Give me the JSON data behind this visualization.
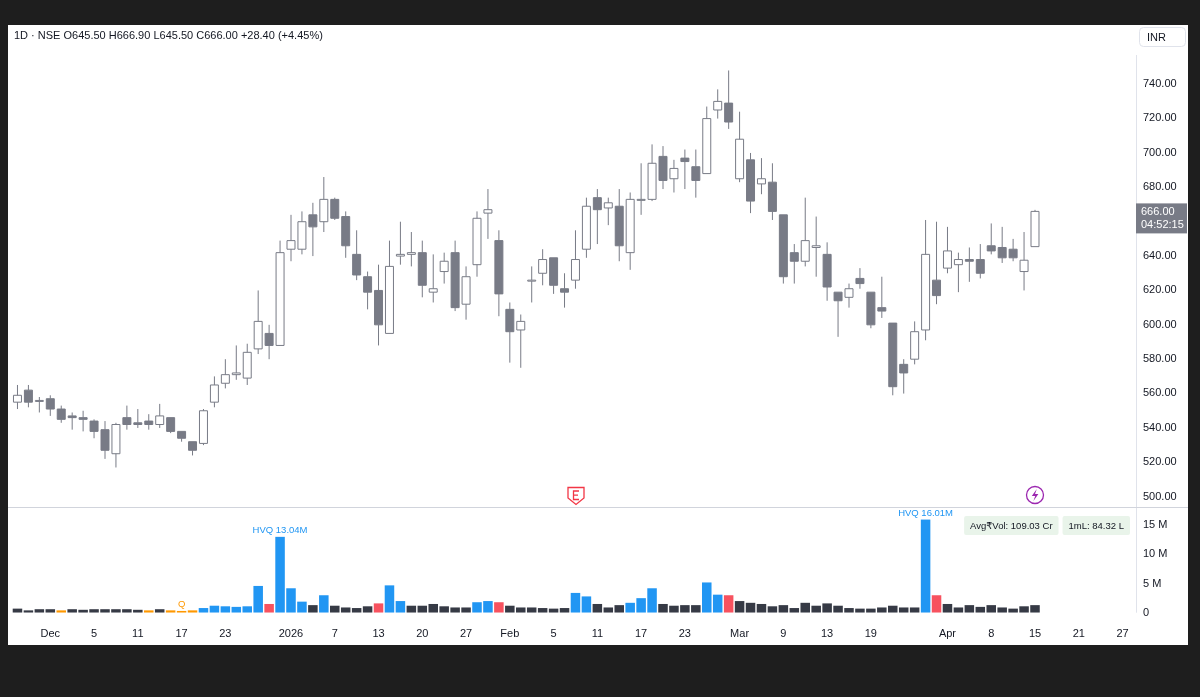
{
  "chart_data": [
    {
      "type": "candlestick",
      "title": "1D · NSE O645.50 H666.90 L645.50 C666.00 +28.40 (+4.45%)",
      "ylabel": "INR",
      "color": "#787b86",
      "categories": [
        null,
        null,
        null,
        null,
        null,
        null,
        null,
        null,
        null,
        null,
        null,
        null,
        null,
        null,
        null,
        null,
        null,
        null,
        null,
        null,
        null,
        null,
        null,
        null,
        null,
        null,
        null,
        null,
        null,
        null,
        null,
        null,
        null,
        null,
        null,
        null,
        null,
        null,
        null,
        null,
        null,
        null,
        null,
        null,
        null,
        null,
        null,
        null,
        null,
        null,
        null,
        null,
        null,
        null,
        null,
        null,
        null,
        null,
        null,
        null,
        null,
        null,
        null,
        null,
        null,
        null,
        null,
        null,
        null,
        null,
        null,
        null,
        null,
        null,
        null,
        null,
        null,
        null,
        null,
        null,
        null,
        null,
        null,
        null,
        null,
        null,
        null,
        null,
        null,
        null,
        null,
        null,
        null,
        null,
        null,
        null,
        null,
        null,
        null,
        null,
        null,
        null
      ],
      "ohlc": [
        [
          555,
          565,
          551,
          559
        ],
        [
          562,
          565,
          552,
          555
        ],
        [
          556,
          558,
          549,
          556
        ],
        [
          557,
          559,
          547,
          551
        ],
        [
          551,
          553,
          543,
          545
        ],
        [
          547,
          549,
          539,
          546
        ],
        [
          546,
          550,
          538,
          545
        ],
        [
          544,
          545,
          534,
          538
        ],
        [
          539,
          544,
          522,
          527
        ],
        [
          525,
          543,
          517,
          542
        ],
        [
          546,
          553,
          539,
          542
        ],
        [
          543,
          551,
          540,
          542
        ],
        [
          544,
          548,
          539,
          542
        ],
        [
          542,
          554,
          540,
          547
        ],
        [
          546,
          546,
          537,
          538
        ],
        [
          538,
          538,
          532,
          534
        ],
        [
          532,
          532,
          524,
          527
        ],
        [
          531,
          551,
          530,
          550
        ],
        [
          555,
          570,
          552,
          565
        ],
        [
          566,
          580,
          563,
          571
        ],
        [
          571,
          588,
          568,
          572
        ],
        [
          569,
          589,
          565,
          584
        ],
        [
          586,
          620,
          583,
          602
        ],
        [
          595,
          600,
          580,
          588
        ],
        [
          588,
          649,
          588,
          642
        ],
        [
          644,
          664,
          637,
          649
        ],
        [
          644,
          666,
          641,
          660
        ],
        [
          664,
          671,
          640,
          657
        ],
        [
          660,
          686,
          654,
          673
        ],
        [
          673,
          674,
          661,
          662
        ],
        [
          663,
          666,
          639,
          646
        ],
        [
          641,
          655,
          626,
          629
        ],
        [
          628,
          631,
          609,
          619
        ],
        [
          620,
          635,
          588,
          600
        ],
        [
          595,
          649,
          595,
          634
        ],
        [
          640,
          660,
          635,
          641
        ],
        [
          641,
          654,
          634,
          642
        ],
        [
          642,
          649,
          616,
          623
        ],
        [
          619,
          641,
          613,
          621
        ],
        [
          631,
          642,
          624,
          637
        ],
        [
          642,
          649,
          608,
          610
        ],
        [
          612,
          634,
          603,
          628
        ],
        [
          635,
          666,
          628,
          662
        ],
        [
          665,
          679,
          650,
          667
        ],
        [
          649,
          655,
          605,
          618
        ],
        [
          609,
          613,
          578,
          596
        ],
        [
          597,
          606,
          575,
          602
        ],
        [
          626,
          634,
          613,
          626
        ],
        [
          630,
          644,
          623,
          638
        ],
        [
          639,
          639,
          618,
          623
        ],
        [
          621,
          630,
          610,
          619
        ],
        [
          626,
          655,
          621,
          638
        ],
        [
          644,
          674,
          639,
          669
        ],
        [
          674,
          679,
          647,
          667
        ],
        [
          668,
          674,
          658,
          671
        ],
        [
          669,
          679,
          637,
          646
        ],
        [
          642,
          677,
          632,
          673
        ],
        [
          673,
          694,
          664,
          673
        ],
        [
          673,
          705,
          672,
          694
        ],
        [
          698,
          704,
          679,
          684
        ],
        [
          685,
          696,
          677,
          691
        ],
        [
          697,
          702,
          679,
          695
        ],
        [
          692,
          702,
          674,
          684
        ],
        [
          688,
          727,
          688,
          720
        ],
        [
          725,
          737,
          720,
          730
        ],
        [
          729,
          748,
          714,
          718
        ],
        [
          685,
          724,
          683,
          708
        ],
        [
          696,
          700,
          665,
          672
        ],
        [
          682,
          697,
          676,
          685
        ],
        [
          683,
          694,
          661,
          666
        ],
        [
          664,
          664,
          624,
          628
        ],
        [
          642,
          647,
          624,
          637
        ],
        [
          637,
          674,
          634,
          649
        ],
        [
          645,
          663,
          628,
          646
        ],
        [
          641,
          648,
          614,
          622
        ],
        [
          619,
          619,
          593,
          614
        ],
        [
          616,
          624,
          610,
          621
        ],
        [
          627,
          633,
          621,
          624
        ],
        [
          619,
          619,
          598,
          600
        ],
        [
          610,
          628,
          604,
          608
        ],
        [
          601,
          601,
          559,
          564
        ],
        [
          577,
          580,
          560,
          572
        ],
        [
          580,
          602,
          577,
          596
        ],
        [
          597,
          661,
          591,
          641
        ],
        [
          626,
          660,
          612,
          617
        ],
        [
          633,
          657,
          630,
          643
        ],
        [
          635,
          642,
          619,
          638
        ],
        [
          638,
          645,
          625,
          637
        ],
        [
          638,
          647,
          627,
          630
        ],
        [
          646,
          659,
          641,
          643
        ],
        [
          645,
          657,
          636,
          639
        ],
        [
          644,
          650,
          637,
          639
        ],
        [
          631,
          654,
          620,
          637.6
        ],
        [
          645.5,
          666.9,
          645.5,
          666.0
        ],
        null,
        null,
        null,
        null,
        null,
        null,
        null,
        null
      ],
      "ylim": [
        494,
        757
      ],
      "yticks": [
        {
          "value": 500,
          "label": "500.00"
        },
        {
          "value": 520,
          "label": "520.00"
        },
        {
          "value": 540,
          "label": "540.00"
        },
        {
          "value": 560,
          "label": "560.00"
        },
        {
          "value": 580,
          "label": "580.00"
        },
        {
          "value": 600,
          "label": "600.00"
        },
        {
          "value": 620,
          "label": "620.00"
        },
        {
          "value": 640,
          "label": "640.00"
        },
        {
          "value": 680,
          "label": "680.00"
        },
        {
          "value": 700,
          "label": "700.00"
        },
        {
          "value": 720,
          "label": "720.00"
        },
        {
          "value": 740,
          "label": "740.00"
        }
      ],
      "annotations": [
        "666.00",
        "04:52:15"
      ]
    },
    {
      "type": "bar",
      "categories": [
        null,
        null,
        null,
        "Dec",
        null,
        null,
        null,
        "5",
        null,
        null,
        null,
        "11",
        null,
        null,
        null,
        "17",
        null,
        null,
        null,
        "23",
        null,
        null,
        null,
        null,
        null,
        "2026",
        null,
        null,
        null,
        "7",
        null,
        null,
        null,
        "13",
        null,
        null,
        null,
        "20",
        null,
        null,
        null,
        "27",
        null,
        null,
        null,
        "Feb",
        null,
        null,
        null,
        "5",
        null,
        null,
        null,
        "11",
        null,
        null,
        null,
        "17",
        null,
        null,
        null,
        "23",
        null,
        null,
        null,
        null,
        "Mar",
        null,
        null,
        null,
        "9",
        null,
        null,
        null,
        "13",
        null,
        null,
        null,
        "19",
        null,
        null,
        null,
        null,
        null,
        null,
        "Apr",
        null,
        null,
        null,
        "8",
        null,
        null,
        null,
        "15",
        null,
        null,
        null,
        "21",
        null,
        null,
        null,
        "27"
      ],
      "values": [
        0.7,
        0.4,
        0.6,
        0.6,
        0.4,
        0.6,
        0.5,
        0.6,
        0.6,
        0.6,
        0.6,
        0.5,
        0.4,
        0.6,
        0.4,
        0.3,
        0.4,
        0.8,
        1.2,
        1.1,
        1.0,
        1.1,
        4.6,
        1.5,
        13.04,
        4.2,
        1.9,
        1.3,
        3.0,
        1.2,
        0.9,
        0.8,
        1.1,
        1.6,
        4.7,
        2.0,
        1.2,
        1.2,
        1.5,
        1.1,
        0.9,
        0.9,
        1.8,
        2.0,
        1.8,
        1.2,
        0.9,
        0.9,
        0.8,
        0.7,
        0.8,
        3.4,
        2.8,
        1.5,
        0.9,
        1.3,
        1.7,
        2.5,
        4.2,
        1.5,
        1.2,
        1.3,
        1.3,
        5.2,
        3.1,
        3.0,
        2.0,
        1.7,
        1.5,
        1.1,
        1.3,
        0.8,
        1.7,
        1.2,
        1.6,
        1.2,
        0.8,
        0.7,
        0.7,
        0.9,
        1.2,
        0.9,
        0.9,
        16.01,
        3.0,
        1.5,
        0.9,
        1.3,
        1.0,
        1.3,
        0.9,
        0.7,
        1.1,
        1.3,
        null,
        null,
        null,
        null,
        null,
        null,
        null,
        null
      ],
      "colors": [
        "#363a45",
        "#363a45",
        "#363a45",
        "#363a45",
        "#ff9800",
        "#363a45",
        "#363a45",
        "#363a45",
        "#363a45",
        "#363a45",
        "#363a45",
        "#363a45",
        "#ff9800",
        "#363a45",
        "#ff9800",
        "#ff9800",
        "#ff9800",
        "#2196f3",
        "#2196f3",
        "#2196f3",
        "#2196f3",
        "#2196f3",
        "#2196f3",
        "#f7525f",
        "#2196f3",
        "#2196f3",
        "#2196f3",
        "#363a45",
        "#2196f3",
        "#363a45",
        "#363a45",
        "#363a45",
        "#363a45",
        "#f7525f",
        "#2196f3",
        "#2196f3",
        "#363a45",
        "#363a45",
        "#363a45",
        "#363a45",
        "#363a45",
        "#363a45",
        "#2196f3",
        "#2196f3",
        "#f7525f",
        "#363a45",
        "#363a45",
        "#363a45",
        "#363a45",
        "#363a45",
        "#363a45",
        "#2196f3",
        "#2196f3",
        "#363a45",
        "#363a45",
        "#363a45",
        "#2196f3",
        "#2196f3",
        "#2196f3",
        "#363a45",
        "#363a45",
        "#363a45",
        "#363a45",
        "#2196f3",
        "#2196f3",
        "#f7525f",
        "#363a45",
        "#363a45",
        "#363a45",
        "#363a45",
        "#363a45",
        "#363a45",
        "#363a45",
        "#363a45",
        "#363a45",
        "#363a45",
        "#363a45",
        "#363a45",
        "#363a45",
        "#363a45",
        "#363a45",
        "#363a45",
        "#363a45",
        "#2196f3",
        "#f7525f",
        "#363a45",
        "#363a45",
        "#363a45",
        "#363a45",
        "#363a45",
        "#363a45",
        "#363a45",
        "#363a45",
        "#363a45",
        null,
        null,
        null,
        null,
        null,
        null,
        null,
        null
      ],
      "value_labels": [
        null,
        null,
        null,
        null,
        null,
        null,
        null,
        null,
        null,
        null,
        null,
        null,
        null,
        null,
        null,
        "Q",
        null,
        null,
        null,
        null,
        null,
        null,
        null,
        null,
        "HVQ 13.04M",
        null,
        null,
        null,
        null,
        null,
        null,
        null,
        null,
        null,
        null,
        null,
        null,
        null,
        null,
        null,
        null,
        null,
        null,
        null,
        null,
        null,
        null,
        null,
        null,
        null,
        null,
        null,
        null,
        null,
        null,
        null,
        null,
        null,
        null,
        null,
        null,
        null,
        null,
        null,
        null,
        null,
        null,
        null,
        null,
        null,
        null,
        null,
        null,
        null,
        null,
        null,
        null,
        null,
        null,
        null,
        null,
        null,
        null,
        "HVQ 16.01M",
        null,
        null,
        null,
        null,
        null,
        null,
        null,
        null,
        null,
        null,
        null,
        null,
        null,
        null,
        null,
        null,
        null,
        null
      ],
      "ylim": [
        0,
        18
      ],
      "yticks": [
        0,
        {
          "value": 5,
          "label": "5 M"
        },
        {
          "value": 10,
          "label": "10 M"
        },
        {
          "value": 15,
          "label": "15 M"
        }
      ],
      "annotations": [
        "Avg₹Vol: 109.03 Cr",
        "1mL: 84.32 L"
      ]
    }
  ]
}
